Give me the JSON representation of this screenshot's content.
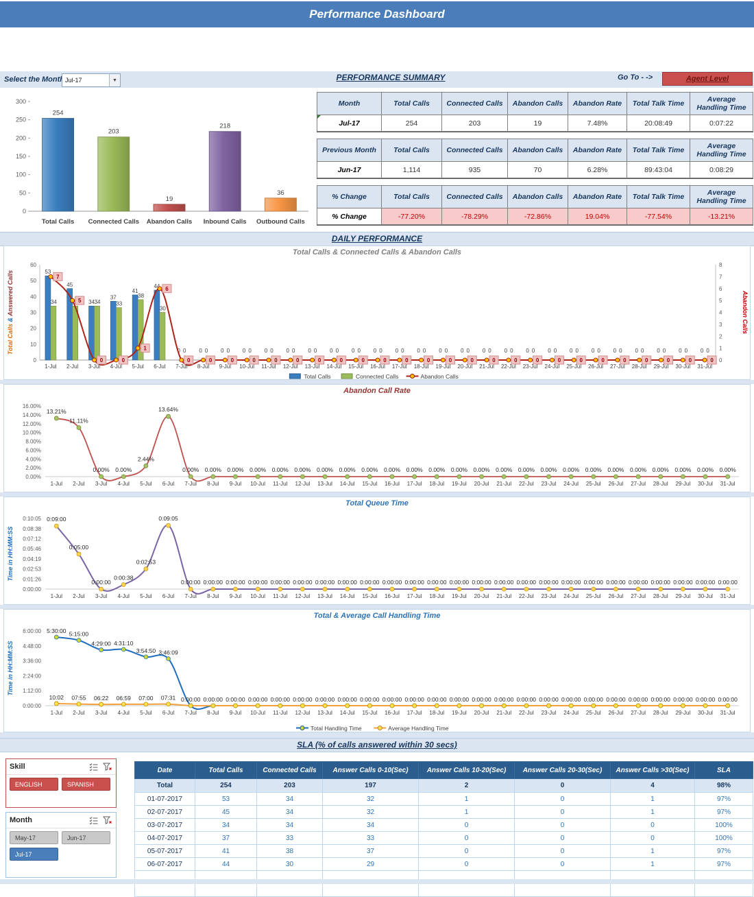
{
  "app": {
    "title": "Performance Dashboard"
  },
  "controls": {
    "select_month_label": "Select the Month",
    "month_value": "Jul-17",
    "summary_title": "PERFORMANCE SUMMARY",
    "goto_label": "Go To - ->",
    "agent_level_label": "Agent Level"
  },
  "sections": {
    "daily_title": "DAILY PERFORMANCE",
    "sla_title": "SLA (% of calls answered within 30 secs)"
  },
  "summary": {
    "columns": [
      "Total Calls",
      "Connected Calls",
      "Abandon Calls",
      "Abandon Rate",
      "Total Talk Time",
      "Average Handling Time"
    ],
    "tables": [
      {
        "row_header": "Month",
        "row_label": "Jul-17",
        "values": [
          "254",
          "203",
          "19",
          "7.48%",
          "20:08:49",
          "0:07:22"
        ],
        "variant": "normal"
      },
      {
        "row_header": "Previous Month",
        "row_label": "Jun-17",
        "values": [
          "1,114",
          "935",
          "70",
          "6.28%",
          "89:43:04",
          "0:08:29"
        ],
        "variant": "normal"
      },
      {
        "row_header": "% Change",
        "row_label": "% Change",
        "values": [
          "-77.20%",
          "-78.29%",
          "-72.86%",
          "19.04%",
          "-77.54%",
          "-13.21%"
        ],
        "variant": "change"
      }
    ]
  },
  "days": [
    "1-Jul",
    "2-Jul",
    "3-Jul",
    "4-Jul",
    "5-Jul",
    "6-Jul",
    "7-Jul",
    "8-Jul",
    "9-Jul",
    "10-Jul",
    "11-Jul",
    "12-Jul",
    "13-Jul",
    "14-Jul",
    "15-Jul",
    "16-Jul",
    "17-Jul",
    "18-Jul",
    "19-Jul",
    "20-Jul",
    "21-Jul",
    "22-Jul",
    "23-Jul",
    "24-Jul",
    "25-Jul",
    "26-Jul",
    "27-Jul",
    "28-Jul",
    "29-Jul",
    "30-Jul",
    "31-Jul"
  ],
  "chart_data": [
    {
      "id": "monthly-summary",
      "type": "bar",
      "title": "",
      "categories": [
        "Total Calls",
        "Connected Calls",
        "Abandon Calls",
        "Inbound Calls",
        "Outbound Calls"
      ],
      "values": [
        254,
        203,
        19,
        218,
        36
      ],
      "colors": [
        "#3a7ebf",
        "#9bbb59",
        "#c0504d",
        "#8064a2",
        "#f79646"
      ],
      "ylim": [
        0,
        300
      ],
      "ytick": 50
    },
    {
      "id": "daily-calls",
      "type": "combo",
      "title": "Total Calls & Connected Calls & Abandon Calls",
      "ylim_left": [
        0,
        60
      ],
      "ytick_left": 10,
      "ylim_right": [
        0,
        8
      ],
      "ytick_right": 1,
      "y_left_title_parts": [
        {
          "text": "Total Calls ",
          "color": "#e36c0a"
        },
        {
          "text": "& ",
          "color": "#1f6dbf"
        },
        {
          "text": "Answered Calls",
          "color": "#943634"
        }
      ],
      "y_right_title": "Abandon Calls",
      "series": [
        {
          "name": "Total Calls",
          "type": "bar",
          "color": "#3a7ebf",
          "values": [
            53,
            45,
            34,
            37,
            41,
            44,
            0,
            0,
            0,
            0,
            0,
            0,
            0,
            0,
            0,
            0,
            0,
            0,
            0,
            0,
            0,
            0,
            0,
            0,
            0,
            0,
            0,
            0,
            0,
            0,
            0
          ]
        },
        {
          "name": "Connected Calls",
          "type": "bar",
          "color": "#9bbb59",
          "values": [
            34,
            34,
            34,
            33,
            38,
            30,
            0,
            0,
            0,
            0,
            0,
            0,
            0,
            0,
            0,
            0,
            0,
            0,
            0,
            0,
            0,
            0,
            0,
            0,
            0,
            0,
            0,
            0,
            0,
            0,
            0
          ]
        },
        {
          "name": "Abandon Calls",
          "type": "line",
          "color": "#b02318",
          "marker": "#ffc000",
          "values": [
            7,
            5,
            0,
            0,
            1,
            6,
            0,
            0,
            0,
            0,
            0,
            0,
            0,
            0,
            0,
            0,
            0,
            0,
            0,
            0,
            0,
            0,
            0,
            0,
            0,
            0,
            0,
            0,
            0,
            0,
            0
          ]
        }
      ],
      "legend": [
        {
          "swatch": "bar",
          "color": "#3a7ebf",
          "label": "Total Calls"
        },
        {
          "swatch": "bar",
          "color": "#9bbb59",
          "label": "Connected Calls"
        },
        {
          "swatch": "line",
          "color": "#b02318",
          "marker": "#ffc000",
          "label": "Abandon Calls"
        }
      ]
    },
    {
      "id": "abandon-rate",
      "type": "line",
      "title": "Abandon Call Rate",
      "values": [
        13.21,
        11.11,
        0,
        0,
        2.44,
        13.64,
        0,
        0,
        0,
        0,
        0,
        0,
        0,
        0,
        0,
        0,
        0,
        0,
        0,
        0,
        0,
        0,
        0,
        0,
        0,
        0,
        0,
        0,
        0,
        0,
        0
      ],
      "labels": [
        "13.21%",
        "11.11%",
        "0.00%",
        "0.00%",
        "2.44%",
        "13.64%",
        "0.00%",
        "0.00%",
        "0.00%",
        "0.00%",
        "0.00%",
        "0.00%",
        "0.00%",
        "0.00%",
        "0.00%",
        "0.00%",
        "0.00%",
        "0.00%",
        "0.00%",
        "0.00%",
        "0.00%",
        "0.00%",
        "0.00%",
        "0.00%",
        "0.00%",
        "0.00%",
        "0.00%",
        "0.00%",
        "0.00%",
        "0.00%",
        "0.00%"
      ],
      "ylim": [
        0,
        16
      ],
      "ytick_labels": [
        "0.00%",
        "2.00%",
        "4.00%",
        "6.00%",
        "8.00%",
        "10.00%",
        "12.00%",
        "14.00%",
        "16.00%"
      ],
      "line_color": "#c0504d",
      "marker_fill": "#a9c465",
      "marker_stroke": "#6f8b3a"
    },
    {
      "id": "queue-time",
      "type": "timeline",
      "title": "Total Queue Time",
      "y_title": "Time in HH:MM:SS",
      "seconds": [
        540,
        300,
        0,
        38,
        173,
        545,
        0,
        0,
        0,
        0,
        0,
        0,
        0,
        0,
        0,
        0,
        0,
        0,
        0,
        0,
        0,
        0,
        0,
        0,
        0,
        0,
        0,
        0,
        0,
        0,
        0
      ],
      "labels": [
        "0:09:00",
        "0:05:00",
        "0:00:00",
        "0:00:38",
        "0:02:53",
        "0:09:05",
        "0:00:00",
        "0:00:00",
        "0:00:00",
        "0:00:00",
        "0:00:00",
        "0:00:00",
        "0:00:00",
        "0:00:00",
        "0:00:00",
        "0:00:00",
        "0:00:00",
        "0:00:00",
        "0:00:00",
        "0:00:00",
        "0:00:00",
        "0:00:00",
        "0:00:00",
        "0:00:00",
        "0:00:00",
        "0:00:00",
        "0:00:00",
        "0:00:00",
        "0:00:00",
        "0:00:00",
        "0:00:00"
      ],
      "ytick_seconds": [
        0,
        86,
        173,
        259,
        346,
        432,
        518,
        605
      ],
      "ytick_labels": [
        "0:00:00",
        "0:01:26",
        "0:02:53",
        "0:04:19",
        "0:05:46",
        "0:07:12",
        "0:08:38",
        "0:10:05"
      ],
      "line_color": "#7a64a5",
      "marker_fill": "#ffd34d",
      "marker_stroke": "#c79a22"
    },
    {
      "id": "handling-time",
      "type": "multiline",
      "title": "Total & Average Call Handling Time",
      "y_title": "Time in HH:MM:SS",
      "series": [
        {
          "name": "Total Handling Time",
          "color": "#1f6dbf",
          "marker": "#cdd92f",
          "marker_stroke": "#2e74b5",
          "seconds": [
            19800,
            18900,
            16140,
            16270,
            14090,
            13569,
            0,
            0,
            0,
            0,
            0,
            0,
            0,
            0,
            0,
            0,
            0,
            0,
            0,
            0,
            0,
            0,
            0,
            0,
            0,
            0,
            0,
            0,
            0,
            0,
            0
          ],
          "labels": [
            "5:30:00",
            "5:15:00",
            "4:29:00",
            "4:31:10",
            "3:54:50",
            "3:46:09",
            "0:00:00",
            "0:00:00",
            "0:00:00",
            "0:00:00",
            "0:00:00",
            "0:00:00",
            "0:00:00",
            "0:00:00",
            "0:00:00",
            "0:00:00",
            "0:00:00",
            "0:00:00",
            "0:00:00",
            "0:00:00",
            "0:00:00",
            "0:00:00",
            "0:00:00",
            "0:00:00",
            "0:00:00",
            "0:00:00",
            "0:00:00",
            "0:00:00",
            "0:00:00",
            "0:00:00",
            "0:00:00"
          ]
        },
        {
          "name": "Average Handling Time",
          "color": "#f2a03d",
          "marker": "#ffe14d",
          "marker_stroke": "#bf9000",
          "seconds": [
            602,
            475,
            382,
            419,
            420,
            451,
            0,
            0,
            0,
            0,
            0,
            0,
            0,
            0,
            0,
            0,
            0,
            0,
            0,
            0,
            0,
            0,
            0,
            0,
            0,
            0,
            0,
            0,
            0,
            0,
            0
          ],
          "labels": [
            "10:02",
            "07:55",
            "06:22",
            "06:59",
            "07:00",
            "07:31",
            "",
            "",
            "",
            "",
            "",
            "",
            "",
            "",
            "",
            "",
            "",
            "",
            "",
            "",
            "",
            "",
            "",
            "",
            "",
            "",
            "",
            "",
            "",
            "",
            ""
          ]
        }
      ],
      "ytick_seconds": [
        0,
        4320,
        8640,
        12960,
        17280,
        21600
      ],
      "ytick_labels": [
        "0:00:00",
        "1:12:00",
        "2:24:00",
        "3:36:00",
        "4:48:00",
        "6:00:00"
      ],
      "legend": [
        {
          "swatch": "line",
          "color": "#1f6dbf",
          "marker": "#cdd92f",
          "label": "Total Handling Time"
        },
        {
          "swatch": "line",
          "color": "#f2a03d",
          "marker": "#ffe14d",
          "label": "Average Handling Time"
        }
      ]
    }
  ],
  "slicers": {
    "skill": {
      "title": "Skill",
      "items": [
        {
          "label": "ENGLISH",
          "bg": "#c9504c",
          "fg": "#ffffff",
          "selected": true
        },
        {
          "label": "SPANISH",
          "bg": "#c9504c",
          "fg": "#ffffff",
          "selected": true
        }
      ]
    },
    "month": {
      "title": "Month",
      "items": [
        {
          "label": "May-17",
          "bg": "#c9c9c9",
          "fg": "#404040",
          "selected": false
        },
        {
          "label": "Jun-17",
          "bg": "#c9c9c9",
          "fg": "#404040",
          "selected": false
        },
        {
          "label": "Jul-17",
          "bg": "#4a7ebb",
          "fg": "#ffffff",
          "selected": true
        }
      ]
    }
  },
  "sla_table": {
    "columns": [
      "Date",
      "Total Calls",
      "Connected Calls",
      "Answer Calls 0-10(Sec)",
      "Answer Calls 10-20(Sec)",
      "Answer Calls 20-30(Sec)",
      "Answer Calls >30(Sec)",
      "SLA"
    ],
    "total_row": [
      "Total",
      "254",
      "203",
      "197",
      "2",
      "0",
      "4",
      "98%"
    ],
    "rows": [
      [
        "01-07-2017",
        "53",
        "34",
        "32",
        "1",
        "0",
        "1",
        "97%"
      ],
      [
        "02-07-2017",
        "45",
        "34",
        "32",
        "1",
        "0",
        "1",
        "97%"
      ],
      [
        "03-07-2017",
        "34",
        "34",
        "34",
        "0",
        "0",
        "0",
        "100%"
      ],
      [
        "04-07-2017",
        "37",
        "33",
        "33",
        "0",
        "0",
        "0",
        "100%"
      ],
      [
        "05-07-2017",
        "41",
        "38",
        "37",
        "0",
        "0",
        "1",
        "97%"
      ],
      [
        "06-07-2017",
        "44",
        "30",
        "29",
        "0",
        "0",
        "1",
        "97%"
      ]
    ],
    "empty_rows": 2
  },
  "colors": {
    "header_bar": "#4a7db9",
    "band": "#dbe5f1",
    "table_header_bg": "#dbe5f1",
    "navy_text": "#17365d",
    "change_bg": "#f8caca",
    "change_text": "#c00000",
    "sla_header_bg": "#2c5d8f",
    "sla_total_bg": "#d9e5f3",
    "agent_button_bg": "#c9504c"
  }
}
